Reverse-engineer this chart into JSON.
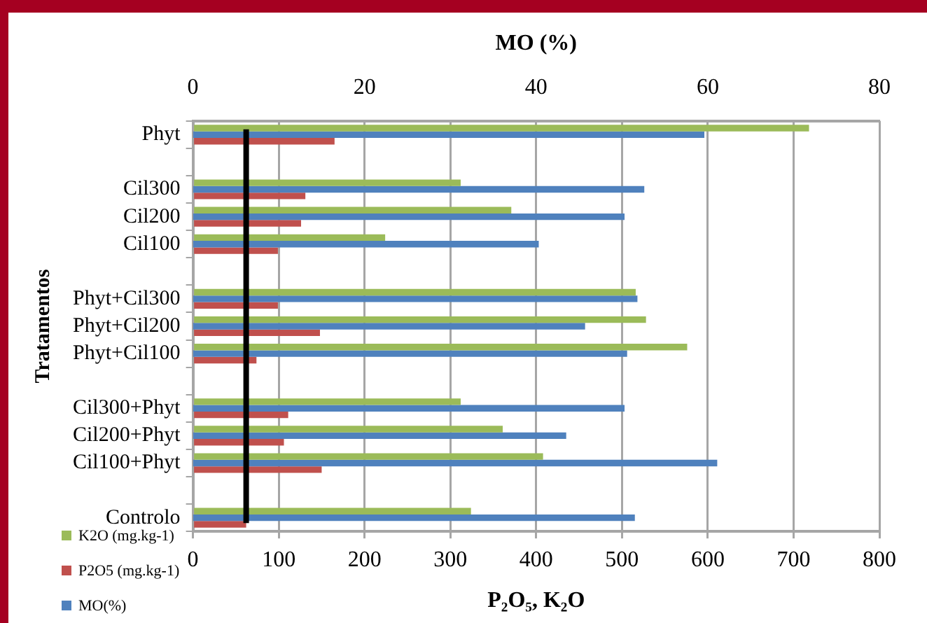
{
  "chart_data": {
    "type": "bar",
    "orientation": "horizontal",
    "xlabel": "P₂O₅, K₂O",
    "ylabel": "Tratamentos",
    "x2label": "MO (%)",
    "categories": [
      "Phyt",
      null,
      "Cil300",
      "Cil200",
      "Cil100",
      null,
      "Phyt+Cil300",
      "Phyt+Cil200",
      "Phyt+Cil100",
      null,
      "Cil300+Phyt",
      "Cil200+Phyt",
      "Cil100+Phyt",
      null,
      "Controlo"
    ],
    "series": [
      {
        "name": "K2O (mg.kg-1)",
        "color": "#9bbb59",
        "values": [
          718,
          null,
          312,
          371,
          224,
          null,
          516,
          528,
          576,
          null,
          312,
          361,
          408,
          null,
          324
        ]
      },
      {
        "name": "P2O5 (mg.kg-1)",
        "color": "#c0504d",
        "values": [
          165,
          null,
          131,
          126,
          99,
          null,
          99,
          148,
          74,
          null,
          111,
          106,
          150,
          null,
          62
        ]
      },
      {
        "name": "MO(%)",
        "color": "#4f81bd",
        "axis": "x2",
        "values": [
          59.6,
          null,
          52.6,
          50.3,
          40.3,
          null,
          51.8,
          45.7,
          50.6,
          null,
          50.3,
          43.5,
          61.1,
          null,
          51.5
        ]
      }
    ],
    "xlim": [
      0,
      800
    ],
    "xticks": [
      0,
      100,
      200,
      300,
      400,
      500,
      600,
      700,
      800
    ],
    "x2lim": [
      0,
      80
    ],
    "x2ticks": [
      0,
      20,
      40,
      60,
      80
    ],
    "ref_lines": [
      {
        "axis": "x",
        "value": 62,
        "color": "#000000"
      }
    ],
    "grid": "x",
    "legend": "bottom left"
  }
}
